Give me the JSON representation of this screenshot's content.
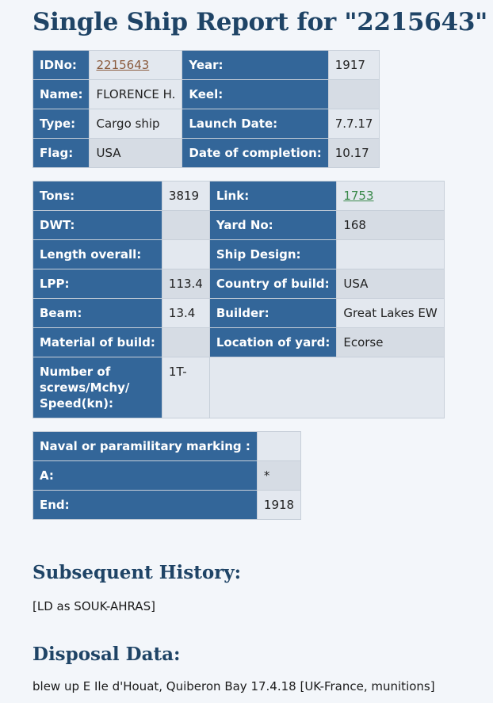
{
  "title": "Single Ship Report for \"2215643\"",
  "basic": {
    "idno_label": "IDNo:",
    "idno": "2215643",
    "year_label": "Year:",
    "year": "1917",
    "name_label": "Name:",
    "name": "FLORENCE H.",
    "keel_label": "Keel:",
    "keel": "",
    "type_label": "Type:",
    "type": "Cargo ship",
    "launch_label": "Launch Date:",
    "launch": "7.7.17",
    "flag_label": "Flag:",
    "flag": "USA",
    "completion_label": "Date of completion:",
    "completion": "10.17"
  },
  "specs": {
    "tons_label": "Tons:",
    "tons": "3819",
    "link_label": "Link:",
    "link": "1753",
    "dwt_label": "DWT:",
    "dwt": "",
    "yard_label": "Yard No:",
    "yard": "168",
    "loa_label": "Length overall:",
    "loa": "",
    "design_label": "Ship Design:",
    "design": "",
    "lpp_label": "LPP:",
    "lpp": "113.4",
    "country_label": "Country of build:",
    "country": "USA",
    "beam_label": "Beam:",
    "beam": "13.4",
    "builder_label": "Builder:",
    "builder": "Great Lakes EW",
    "material_label": "Material of build:",
    "material": "",
    "location_label": "Location of yard:",
    "location": "Ecorse",
    "screws_label": "Number of screws/Mchy/ Speed(kn):",
    "screws": "1T-"
  },
  "naval": {
    "marking_label": "Naval or paramilitary marking :",
    "marking": "",
    "a_label": "A:",
    "a": "*",
    "end_label": "End:",
    "end": "1918"
  },
  "history": {
    "heading": "Subsequent History:",
    "text": "[LD as SOUK-AHRAS]"
  },
  "disposal": {
    "heading": "Disposal Data:",
    "text": "blew up E Ile d'Houat, Quiberon Bay 17.4.18 [UK-France, munitions]"
  }
}
